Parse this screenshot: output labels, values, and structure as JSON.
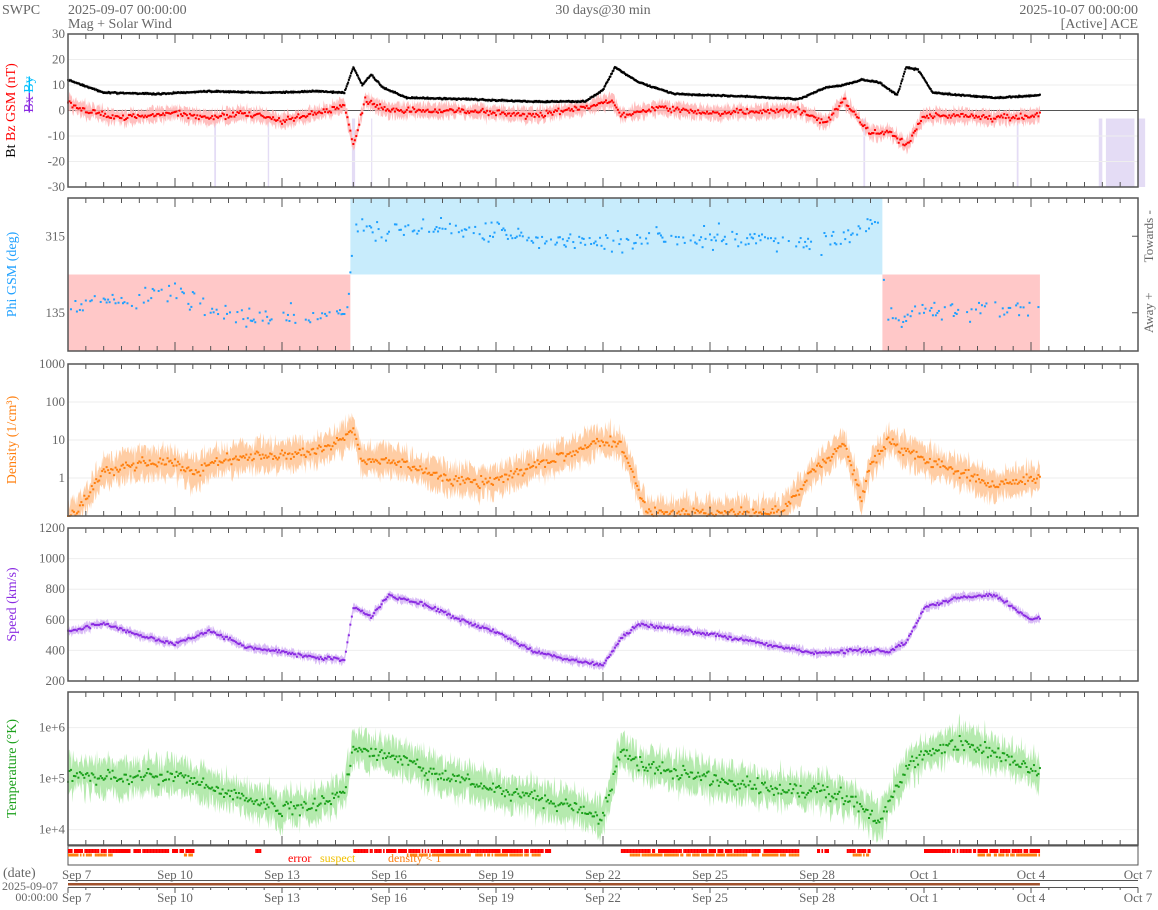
{
  "header": {
    "org": "SWPC",
    "start": "2025-09-07 00:00:00",
    "subtitle": "Mag + Solar Wind",
    "span": "30 days@30 min",
    "end": "2025-10-07 00:00:00",
    "source": "[Active] ACE"
  },
  "chart_data": [
    {
      "type": "scatter",
      "panel": "mag",
      "ylabel_parts": [
        "Bt",
        "Bz GSM (nT)",
        "Bx",
        "By"
      ],
      "ylim": [
        -30,
        30
      ],
      "yticks": [
        "30",
        "20",
        "10",
        "0",
        "-10",
        "-20",
        "-30"
      ],
      "colors": {
        "Bt": "#000000",
        "Bz": "#ff0000",
        "Bx": "#8a2be2",
        "By": "#00bfff",
        "band": "#ffb3b3"
      },
      "series": [
        {
          "name": "Bt",
          "points": [
            [
              "2025-09-07 00:00",
              12
            ],
            [
              "2025-09-08 00:00",
              7
            ],
            [
              "2025-09-09 12:00",
              6.5
            ],
            [
              "2025-09-11 00:00",
              7.5
            ],
            [
              "2025-09-12 12:00",
              7
            ],
            [
              "2025-09-14 00:00",
              7.5
            ],
            [
              "2025-09-14 18:00",
              7
            ],
            [
              "2025-09-15 00:00",
              17
            ],
            [
              "2025-09-15 06:00",
              10
            ],
            [
              "2025-09-15 12:00",
              14
            ],
            [
              "2025-09-15 20:00",
              9
            ],
            [
              "2025-09-16 12:00",
              5
            ],
            [
              "2025-09-18 00:00",
              4.5
            ],
            [
              "2025-09-20 00:00",
              3.5
            ],
            [
              "2025-09-21 12:00",
              3.5
            ],
            [
              "2025-09-22 00:00",
              8
            ],
            [
              "2025-09-22 08:00",
              17
            ],
            [
              "2025-09-23 00:00",
              11
            ],
            [
              "2025-09-24 00:00",
              6.5
            ],
            [
              "2025-09-26 00:00",
              5.5
            ],
            [
              "2025-09-27 12:00",
              4.5
            ],
            [
              "2025-09-28 06:00",
              9
            ],
            [
              "2025-09-28 18:00",
              10
            ],
            [
              "2025-09-29 06:00",
              12
            ],
            [
              "2025-09-29 18:00",
              11
            ],
            [
              "2025-09-30 06:00",
              6
            ],
            [
              "2025-09-30 12:00",
              17
            ],
            [
              "2025-09-30 20:00",
              16
            ],
            [
              "2025-10-01 06:00",
              7
            ],
            [
              "2025-10-02 00:00",
              6
            ],
            [
              "2025-10-03 00:00",
              5
            ],
            [
              "2025-10-04 06:00",
              6
            ]
          ]
        },
        {
          "name": "Bz GSM",
          "points": [
            [
              "2025-09-07 00:00",
              3
            ],
            [
              "2025-09-07 12:00",
              0
            ],
            [
              "2025-09-08 12:00",
              -3
            ],
            [
              "2025-09-10 00:00",
              -1
            ],
            [
              "2025-09-11 00:00",
              -3
            ],
            [
              "2025-09-12 00:00",
              -1
            ],
            [
              "2025-09-13 00:00",
              -4
            ],
            [
              "2025-09-14 00:00",
              -1
            ],
            [
              "2025-09-14 18:00",
              2
            ],
            [
              "2025-09-15 00:00",
              -14
            ],
            [
              "2025-09-15 08:00",
              4
            ],
            [
              "2025-09-16 00:00",
              0
            ],
            [
              "2025-09-18 00:00",
              0
            ],
            [
              "2025-09-20 00:00",
              -2
            ],
            [
              "2025-09-21 12:00",
              1
            ],
            [
              "2025-09-22 06:00",
              4
            ],
            [
              "2025-09-22 12:00",
              -2
            ],
            [
              "2025-09-23 12:00",
              1
            ],
            [
              "2025-09-25 00:00",
              -1
            ],
            [
              "2025-09-27 12:00",
              0
            ],
            [
              "2025-09-28 06:00",
              -5
            ],
            [
              "2025-09-28 18:00",
              4
            ],
            [
              "2025-09-29 12:00",
              -9
            ],
            [
              "2025-09-30 00:00",
              -8
            ],
            [
              "2025-09-30 12:00",
              -14
            ],
            [
              "2025-10-01 00:00",
              -2
            ],
            [
              "2025-10-02 00:00",
              -2
            ],
            [
              "2025-10-03 00:00",
              -3
            ],
            [
              "2025-10-04 06:00",
              -2
            ]
          ]
        }
      ]
    },
    {
      "type": "scatter",
      "panel": "phi",
      "ylabel": "Phi GSM (deg)",
      "ylim": [
        45,
        405
      ],
      "yticks": [
        "315",
        "135"
      ],
      "right_labels": [
        "Towards -",
        "Away +"
      ],
      "colors": {
        "points": "#1ea0ff",
        "towards": "#c8ecfc",
        "away": "#ffc8c8"
      },
      "sectors": [
        {
          "start": "2025-09-07 00:00",
          "end": "2025-09-14 22:00",
          "polarity": "away"
        },
        {
          "start": "2025-09-14 22:00",
          "end": "2025-09-29 20:00",
          "polarity": "towards"
        },
        {
          "start": "2025-09-29 20:00",
          "end": "2025-10-04 06:00",
          "polarity": "away"
        }
      ],
      "points": [
        [
          "2025-09-07 00:00",
          150
        ],
        [
          "2025-09-10 00:00",
          185
        ],
        [
          "2025-09-11 00:00",
          140
        ],
        [
          "2025-09-12 00:00",
          120
        ],
        [
          "2025-09-14 20:00",
          140
        ],
        [
          "2025-09-15 00:00",
          330
        ],
        [
          "2025-09-19 00:00",
          330
        ],
        [
          "2025-09-21 00:00",
          300
        ],
        [
          "2025-09-22 00:00",
          300
        ],
        [
          "2025-09-25 00:00",
          315
        ],
        [
          "2025-09-28 00:00",
          300
        ],
        [
          "2025-09-29 00:00",
          320
        ],
        [
          "2025-09-29 18:00",
          350
        ],
        [
          "2025-09-30 00:00",
          120
        ],
        [
          "2025-10-01 00:00",
          140
        ],
        [
          "2025-10-04 06:00",
          150
        ]
      ]
    },
    {
      "type": "scatter",
      "panel": "density",
      "ylabel": "Density (1/cm³)",
      "yscale": "log",
      "ylim": [
        0.1,
        1000
      ],
      "yticks": [
        "1000",
        "100",
        "10",
        "1"
      ],
      "colors": {
        "points": "#ff7f0e",
        "band": "#ffc494"
      },
      "points": [
        [
          "2025-09-07 00:00",
          0.1
        ],
        [
          "2025-09-07 06:00",
          0.12
        ],
        [
          "2025-09-08 00:00",
          1.5
        ],
        [
          "2025-09-09 00:00",
          2.5
        ],
        [
          "2025-09-10 00:00",
          2.5
        ],
        [
          "2025-09-10 12:00",
          1.2
        ],
        [
          "2025-09-11 00:00",
          2.5
        ],
        [
          "2025-09-12 00:00",
          3.5
        ],
        [
          "2025-09-13 00:00",
          4
        ],
        [
          "2025-09-14 00:00",
          5
        ],
        [
          "2025-09-14 12:00",
          8
        ],
        [
          "2025-09-15 00:00",
          20
        ],
        [
          "2025-09-15 06:00",
          3
        ],
        [
          "2025-09-16 00:00",
          3
        ],
        [
          "2025-09-17 00:00",
          1.5
        ],
        [
          "2025-09-18 00:00",
          0.8
        ],
        [
          "2025-09-19 00:00",
          0.8
        ],
        [
          "2025-09-20 00:00",
          2
        ],
        [
          "2025-09-21 00:00",
          4
        ],
        [
          "2025-09-22 00:00",
          10
        ],
        [
          "2025-09-22 12:00",
          8
        ],
        [
          "2025-09-23 00:00",
          0.5
        ],
        [
          "2025-09-23 06:00",
          0.12
        ],
        [
          "2025-09-27 00:00",
          0.12
        ],
        [
          "2025-09-27 18:00",
          1
        ],
        [
          "2025-09-28 06:00",
          3
        ],
        [
          "2025-09-28 18:00",
          8
        ],
        [
          "2025-09-29 06:00",
          0.3
        ],
        [
          "2025-09-29 12:00",
          2
        ],
        [
          "2025-09-30 00:00",
          10
        ],
        [
          "2025-09-30 12:00",
          5
        ],
        [
          "2025-10-01 00:00",
          3
        ],
        [
          "2025-10-02 00:00",
          1.5
        ],
        [
          "2025-10-03 00:00",
          0.6
        ],
        [
          "2025-10-04 00:00",
          1
        ],
        [
          "2025-10-04 06:00",
          1
        ]
      ]
    },
    {
      "type": "scatter",
      "panel": "speed",
      "ylabel": "Speed (km/s)",
      "ylim": [
        200,
        1200
      ],
      "yticks": [
        "1200",
        "1000",
        "800",
        "600",
        "400",
        "200"
      ],
      "colors": {
        "points": "#8a2be2",
        "band": "#d2b0f5"
      },
      "points": [
        [
          "2025-09-07 00:00",
          520
        ],
        [
          "2025-09-08 00:00",
          580
        ],
        [
          "2025-09-09 00:00",
          500
        ],
        [
          "2025-09-10 00:00",
          440
        ],
        [
          "2025-09-11 00:00",
          530
        ],
        [
          "2025-09-12 00:00",
          420
        ],
        [
          "2025-09-13 00:00",
          390
        ],
        [
          "2025-09-14 00:00",
          350
        ],
        [
          "2025-09-14 18:00",
          340
        ],
        [
          "2025-09-15 00:00",
          680
        ],
        [
          "2025-09-15 12:00",
          620
        ],
        [
          "2025-09-16 00:00",
          760
        ],
        [
          "2025-09-17 00:00",
          700
        ],
        [
          "2025-09-18 00:00",
          600
        ],
        [
          "2025-09-19 00:00",
          520
        ],
        [
          "2025-09-20 00:00",
          400
        ],
        [
          "2025-09-21 00:00",
          340
        ],
        [
          "2025-09-22 00:00",
          300
        ],
        [
          "2025-09-22 12:00",
          480
        ],
        [
          "2025-09-23 00:00",
          570
        ],
        [
          "2025-09-24 00:00",
          540
        ],
        [
          "2025-09-26 00:00",
          470
        ],
        [
          "2025-09-27 00:00",
          420
        ],
        [
          "2025-09-28 00:00",
          380
        ],
        [
          "2025-09-29 00:00",
          400
        ],
        [
          "2025-09-30 00:00",
          390
        ],
        [
          "2025-09-30 12:00",
          450
        ],
        [
          "2025-10-01 00:00",
          670
        ],
        [
          "2025-10-02 00:00",
          750
        ],
        [
          "2025-10-03 00:00",
          760
        ],
        [
          "2025-10-04 00:00",
          600
        ],
        [
          "2025-10-04 06:00",
          610
        ]
      ]
    },
    {
      "type": "scatter",
      "panel": "temperature",
      "ylabel": "Temperature (°K)",
      "yscale": "log",
      "ylim": [
        5000,
        5000000
      ],
      "yticks": [
        "1e+6",
        "1e+5",
        "1e+4"
      ],
      "colors": {
        "points": "#1aa01a",
        "band": "#a8e6a0"
      },
      "points": [
        [
          "2025-09-07 00:00",
          120000
        ],
        [
          "2025-09-09 00:00",
          100000
        ],
        [
          "2025-09-10 00:00",
          120000
        ],
        [
          "2025-09-12 00:00",
          40000
        ],
        [
          "2025-09-13 00:00",
          25000
        ],
        [
          "2025-09-14 00:00",
          30000
        ],
        [
          "2025-09-14 18:00",
          60000
        ],
        [
          "2025-09-15 00:00",
          400000
        ],
        [
          "2025-09-16 00:00",
          300000
        ],
        [
          "2025-09-17 00:00",
          150000
        ],
        [
          "2025-09-19 00:00",
          60000
        ],
        [
          "2025-09-21 00:00",
          30000
        ],
        [
          "2025-09-22 00:00",
          18000
        ],
        [
          "2025-09-22 12:00",
          400000
        ],
        [
          "2025-09-23 00:00",
          200000
        ],
        [
          "2025-09-25 00:00",
          100000
        ],
        [
          "2025-09-27 00:00",
          60000
        ],
        [
          "2025-09-28 00:00",
          60000
        ],
        [
          "2025-09-29 00:00",
          40000
        ],
        [
          "2025-09-29 18:00",
          15000
        ],
        [
          "2025-09-30 12:00",
          150000
        ],
        [
          "2025-10-01 00:00",
          300000
        ],
        [
          "2025-10-02 00:00",
          500000
        ],
        [
          "2025-10-03 00:00",
          300000
        ],
        [
          "2025-10-04 00:00",
          150000
        ],
        [
          "2025-10-04 06:00",
          120000
        ]
      ]
    },
    {
      "type": "table",
      "panel": "flags",
      "legend": [
        "error",
        "suspect",
        "density < 1"
      ],
      "colors": {
        "error": "#ff0000",
        "suspect": "#f0c000",
        "density < 1": "#ff7f0e"
      },
      "error_ranges": [
        [
          "2025-09-07 00:00",
          "2025-09-10 12:00"
        ],
        [
          "2025-09-12 06:00",
          "2025-09-12 10:00"
        ],
        [
          "2025-09-15 00:00",
          "2025-09-20 12:00"
        ],
        [
          "2025-09-22 12:00",
          "2025-09-27 12:00"
        ],
        [
          "2025-09-28 00:00",
          "2025-09-28 08:00"
        ],
        [
          "2025-09-28 20:00",
          "2025-09-29 12:00"
        ],
        [
          "2025-10-01 00:00",
          "2025-10-04 06:00"
        ]
      ],
      "density_ranges": [
        [
          "2025-09-07 00:00",
          "2025-09-08 06:00"
        ],
        [
          "2025-09-10 06:00",
          "2025-09-10 12:00"
        ],
        [
          "2025-09-16 12:00",
          "2025-09-20 06:00"
        ],
        [
          "2025-09-22 18:00",
          "2025-09-27 12:00"
        ],
        [
          "2025-09-29 00:00",
          "2025-09-29 12:00"
        ],
        [
          "2025-10-02 12:00",
          "2025-10-04 06:00"
        ]
      ]
    }
  ],
  "time_axis": {
    "date_label": "(date)",
    "origin_date": "2025-09-07",
    "origin_time": "00:00:00",
    "ticks": [
      "Sep 7",
      "Sep 10",
      "Sep 13",
      "Sep 16",
      "Sep 19",
      "Sep 22",
      "Sep 25",
      "Sep 28",
      "Oct 1",
      "Oct 4",
      "Oct 7"
    ],
    "coverage_end": "2025-10-04 06:00",
    "coverage_color": "#a0522d"
  }
}
